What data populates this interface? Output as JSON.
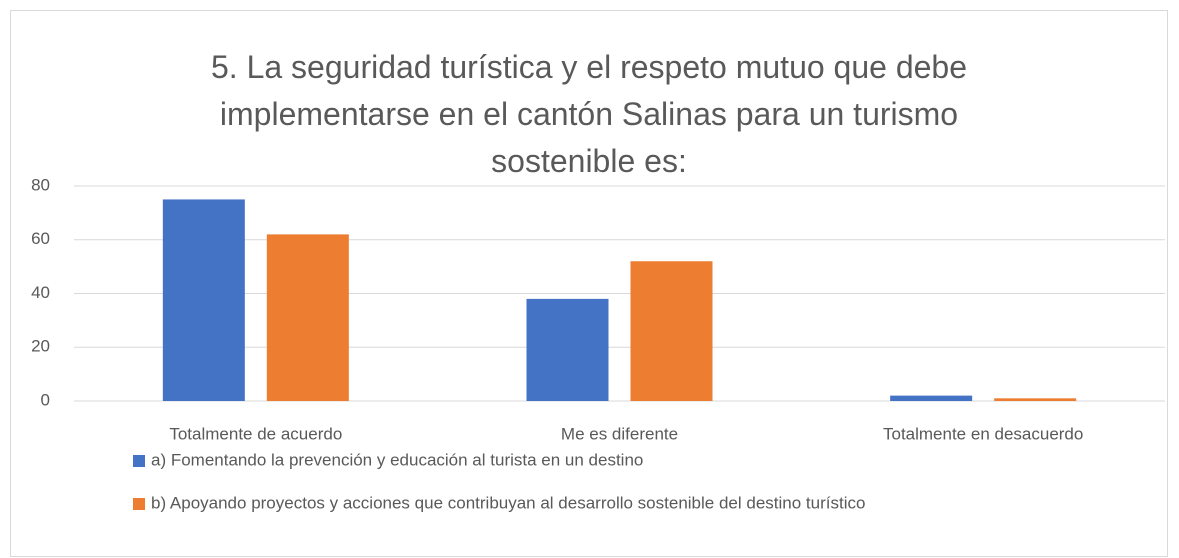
{
  "chart_data": {
    "type": "bar",
    "title": "5. La seguridad turística y el respeto mutuo que debe implementarse en el cantón Salinas para un turismo sostenible es:",
    "categories": [
      "Totalmente de acuerdo",
      "Me es diferente",
      "Totalmente en desacuerdo"
    ],
    "series": [
      {
        "name": "a) Fomentando la prevención y educación al turista en un destino",
        "color": "#4472c4",
        "values": [
          75,
          38,
          2
        ]
      },
      {
        "name": "b) Apoyando proyectos y acciones que contribuyan al desarrollo sostenible del destino turístico",
        "color": "#ed7d31",
        "values": [
          62,
          52,
          1
        ]
      }
    ],
    "ylim": [
      0,
      80
    ],
    "yticks": [
      0,
      20,
      40,
      60,
      80
    ],
    "grid": true,
    "legend": "bottom"
  }
}
